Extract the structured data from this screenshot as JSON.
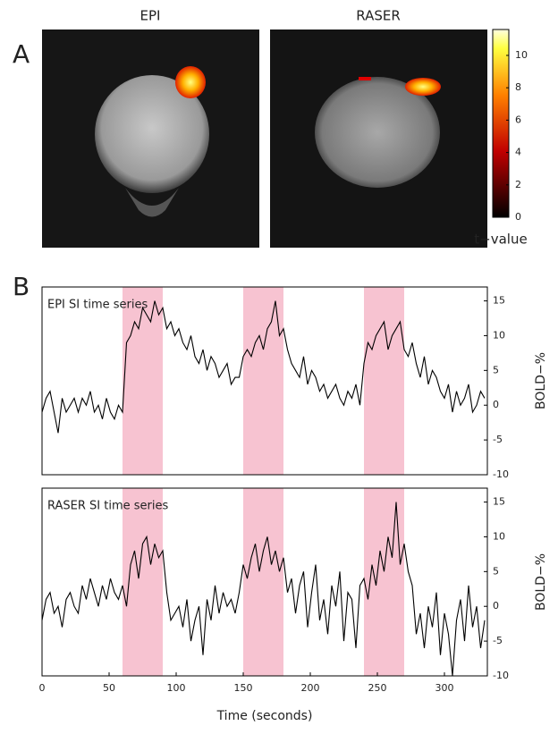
{
  "figure": {
    "panel_labels": [
      "A",
      "B"
    ],
    "image_titles": [
      "EPI",
      "RASER"
    ],
    "colorbar": {
      "label": "t−value",
      "lim": [
        0,
        11.6
      ],
      "ticks": [
        0,
        2,
        4,
        6,
        8,
        10
      ]
    }
  },
  "chart_data": [
    {
      "type": "line",
      "title": "EPI SI time series",
      "y_label": "BOLD−%",
      "xlim": [
        0,
        332
      ],
      "ylim": [
        -10,
        17
      ],
      "yticks": [
        -10,
        -5,
        0,
        5,
        10,
        15
      ],
      "blocks": [
        [
          60,
          90
        ],
        [
          150,
          180
        ],
        [
          240,
          270
        ]
      ],
      "block_color": "#f7c3d1",
      "x": [
        0,
        3,
        6,
        9,
        12,
        15,
        18,
        21,
        24,
        27,
        30,
        33,
        36,
        39,
        42,
        45,
        48,
        51,
        54,
        57,
        60,
        63,
        66,
        69,
        72,
        75,
        78,
        81,
        84,
        87,
        90,
        93,
        96,
        99,
        102,
        105,
        108,
        111,
        114,
        117,
        120,
        123,
        126,
        129,
        132,
        135,
        138,
        141,
        144,
        147,
        150,
        153,
        156,
        159,
        162,
        165,
        168,
        171,
        174,
        177,
        180,
        183,
        186,
        189,
        192,
        195,
        198,
        201,
        204,
        207,
        210,
        213,
        216,
        219,
        222,
        225,
        228,
        231,
        234,
        237,
        240,
        243,
        246,
        249,
        252,
        255,
        258,
        261,
        264,
        267,
        270,
        273,
        276,
        279,
        282,
        285,
        288,
        291,
        294,
        297,
        300,
        303,
        306,
        309,
        312,
        315,
        318,
        321,
        324,
        327,
        330
      ],
      "series": [
        {
          "name": "EPI",
          "color": "#000000",
          "values": [
            -1,
            1,
            2,
            -1,
            -4,
            1,
            -1,
            0,
            1,
            -1,
            1,
            0,
            2,
            -1,
            0,
            -2,
            1,
            -1,
            -2,
            0,
            -1,
            9,
            10,
            12,
            11,
            14,
            13,
            12,
            15,
            13,
            14,
            11,
            12,
            10,
            11,
            9,
            8,
            10,
            7,
            6,
            8,
            5,
            7,
            6,
            4,
            5,
            6,
            3,
            4,
            4,
            7,
            8,
            7,
            9,
            10,
            8,
            11,
            12,
            15,
            10,
            11,
            8,
            6,
            5,
            4,
            7,
            3,
            5,
            4,
            2,
            3,
            1,
            2,
            3,
            1,
            0,
            2,
            1,
            3,
            0,
            6,
            9,
            8,
            10,
            11,
            12,
            8,
            10,
            11,
            12,
            8,
            7,
            9,
            6,
            4,
            7,
            3,
            5,
            4,
            2,
            1,
            3,
            -1,
            2,
            0,
            1,
            3,
            -1,
            0,
            2,
            1
          ]
        }
      ]
    },
    {
      "type": "line",
      "title": "RASER SI time series",
      "y_label": "BOLD−%",
      "x_label": "Time (seconds)",
      "xlim": [
        0,
        332
      ],
      "ylim": [
        -10,
        17
      ],
      "yticks": [
        -10,
        -5,
        0,
        5,
        10,
        15
      ],
      "xticks": [
        0,
        50,
        100,
        150,
        200,
        250,
        300
      ],
      "blocks": [
        [
          60,
          90
        ],
        [
          150,
          180
        ],
        [
          240,
          270
        ]
      ],
      "block_color": "#f7c3d1",
      "x": [
        0,
        3,
        6,
        9,
        12,
        15,
        18,
        21,
        24,
        27,
        30,
        33,
        36,
        39,
        42,
        45,
        48,
        51,
        54,
        57,
        60,
        63,
        66,
        69,
        72,
        75,
        78,
        81,
        84,
        87,
        90,
        93,
        96,
        99,
        102,
        105,
        108,
        111,
        114,
        117,
        120,
        123,
        126,
        129,
        132,
        135,
        138,
        141,
        144,
        147,
        150,
        153,
        156,
        159,
        162,
        165,
        168,
        171,
        174,
        177,
        180,
        183,
        186,
        189,
        192,
        195,
        198,
        201,
        204,
        207,
        210,
        213,
        216,
        219,
        222,
        225,
        228,
        231,
        234,
        237,
        240,
        243,
        246,
        249,
        252,
        255,
        258,
        261,
        264,
        267,
        270,
        273,
        276,
        279,
        282,
        285,
        288,
        291,
        294,
        297,
        300,
        303,
        306,
        309,
        312,
        315,
        318,
        321,
        324,
        327,
        330
      ],
      "series": [
        {
          "name": "RASER",
          "color": "#000000",
          "values": [
            -2,
            1,
            2,
            -1,
            0,
            -3,
            1,
            2,
            0,
            -1,
            3,
            1,
            4,
            2,
            0,
            3,
            1,
            4,
            2,
            1,
            3,
            0,
            6,
            8,
            4,
            9,
            10,
            6,
            9,
            7,
            8,
            2,
            -2,
            -1,
            0,
            -3,
            1,
            -5,
            -2,
            0,
            -7,
            1,
            -2,
            3,
            -1,
            2,
            0,
            1,
            -1,
            2,
            6,
            4,
            7,
            9,
            5,
            8,
            10,
            6,
            8,
            5,
            7,
            2,
            4,
            -1,
            3,
            5,
            -3,
            2,
            6,
            -2,
            1,
            -4,
            3,
            0,
            5,
            -5,
            2,
            1,
            -6,
            3,
            4,
            1,
            6,
            3,
            8,
            5,
            10,
            7,
            15,
            6,
            9,
            5,
            3,
            -4,
            -1,
            -6,
            0,
            -3,
            2,
            -7,
            -1,
            -4,
            -10,
            -2,
            1,
            -5,
            3,
            -3,
            0,
            -6,
            -2
          ]
        }
      ]
    }
  ]
}
